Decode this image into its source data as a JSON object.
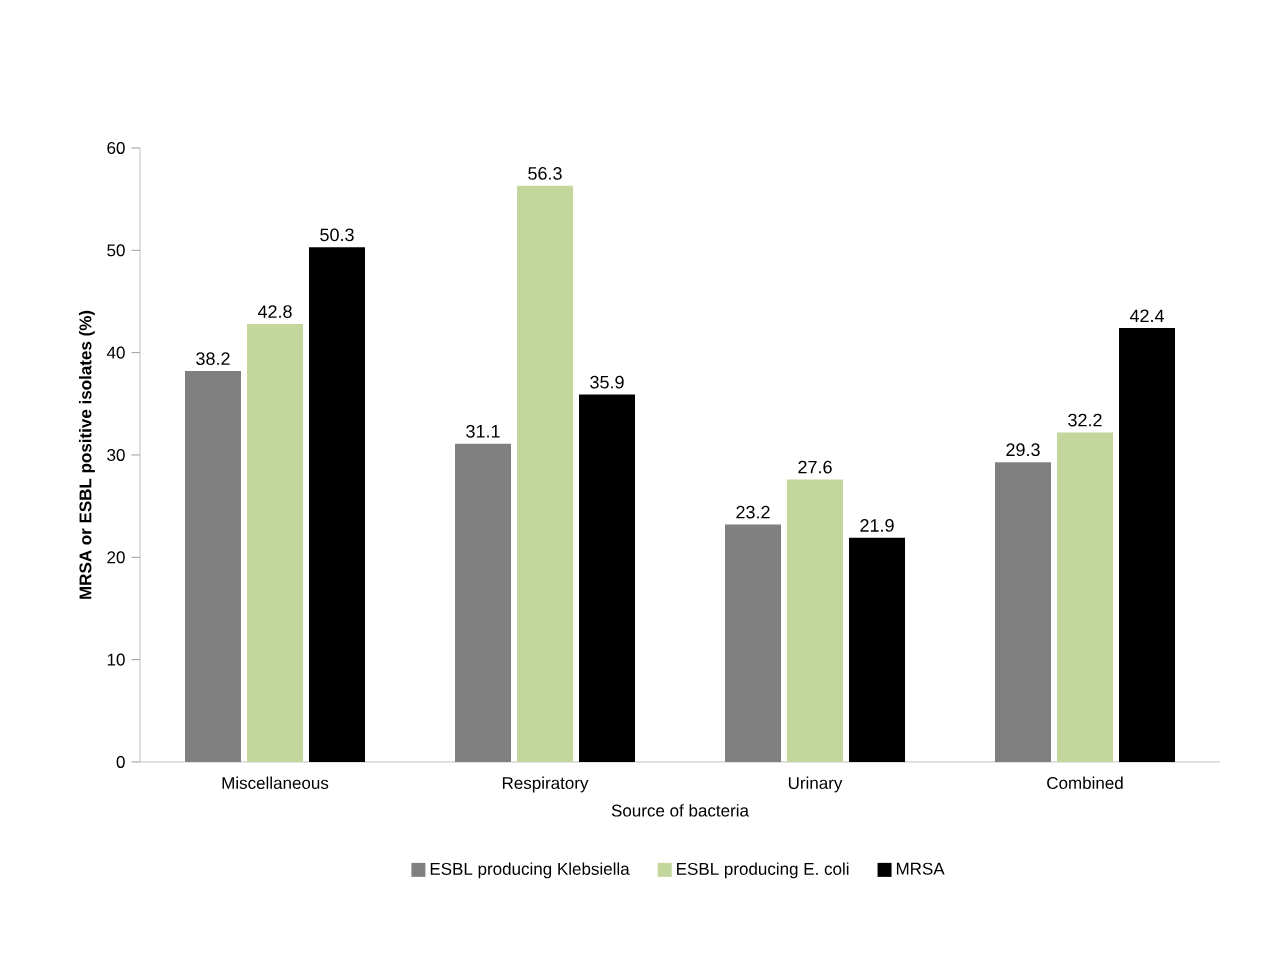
{
  "chart_data": {
    "type": "bar",
    "xlabel": "Source of bacteria",
    "ylabel": "MRSA or ESBL positive isolates (%)",
    "categories": [
      "Miscellaneous",
      "Respiratory",
      "Urinary",
      "Combined"
    ],
    "series": [
      {
        "name": "ESBL producing Klebsiella",
        "color": "#808080",
        "values": [
          38.2,
          31.1,
          23.2,
          29.3
        ]
      },
      {
        "name": "ESBL producing E. coli",
        "color": "#c3d69b",
        "values": [
          42.8,
          56.3,
          27.6,
          32.2
        ]
      },
      {
        "name": "MRSA",
        "color": "#000000",
        "values": [
          50.3,
          35.9,
          21.9,
          42.4
        ]
      }
    ],
    "ylim": [
      0,
      60
    ],
    "yticks": [
      0,
      10,
      20,
      30,
      40,
      50,
      60
    ],
    "data_labels": true,
    "legend": "bottom",
    "grid": false
  }
}
